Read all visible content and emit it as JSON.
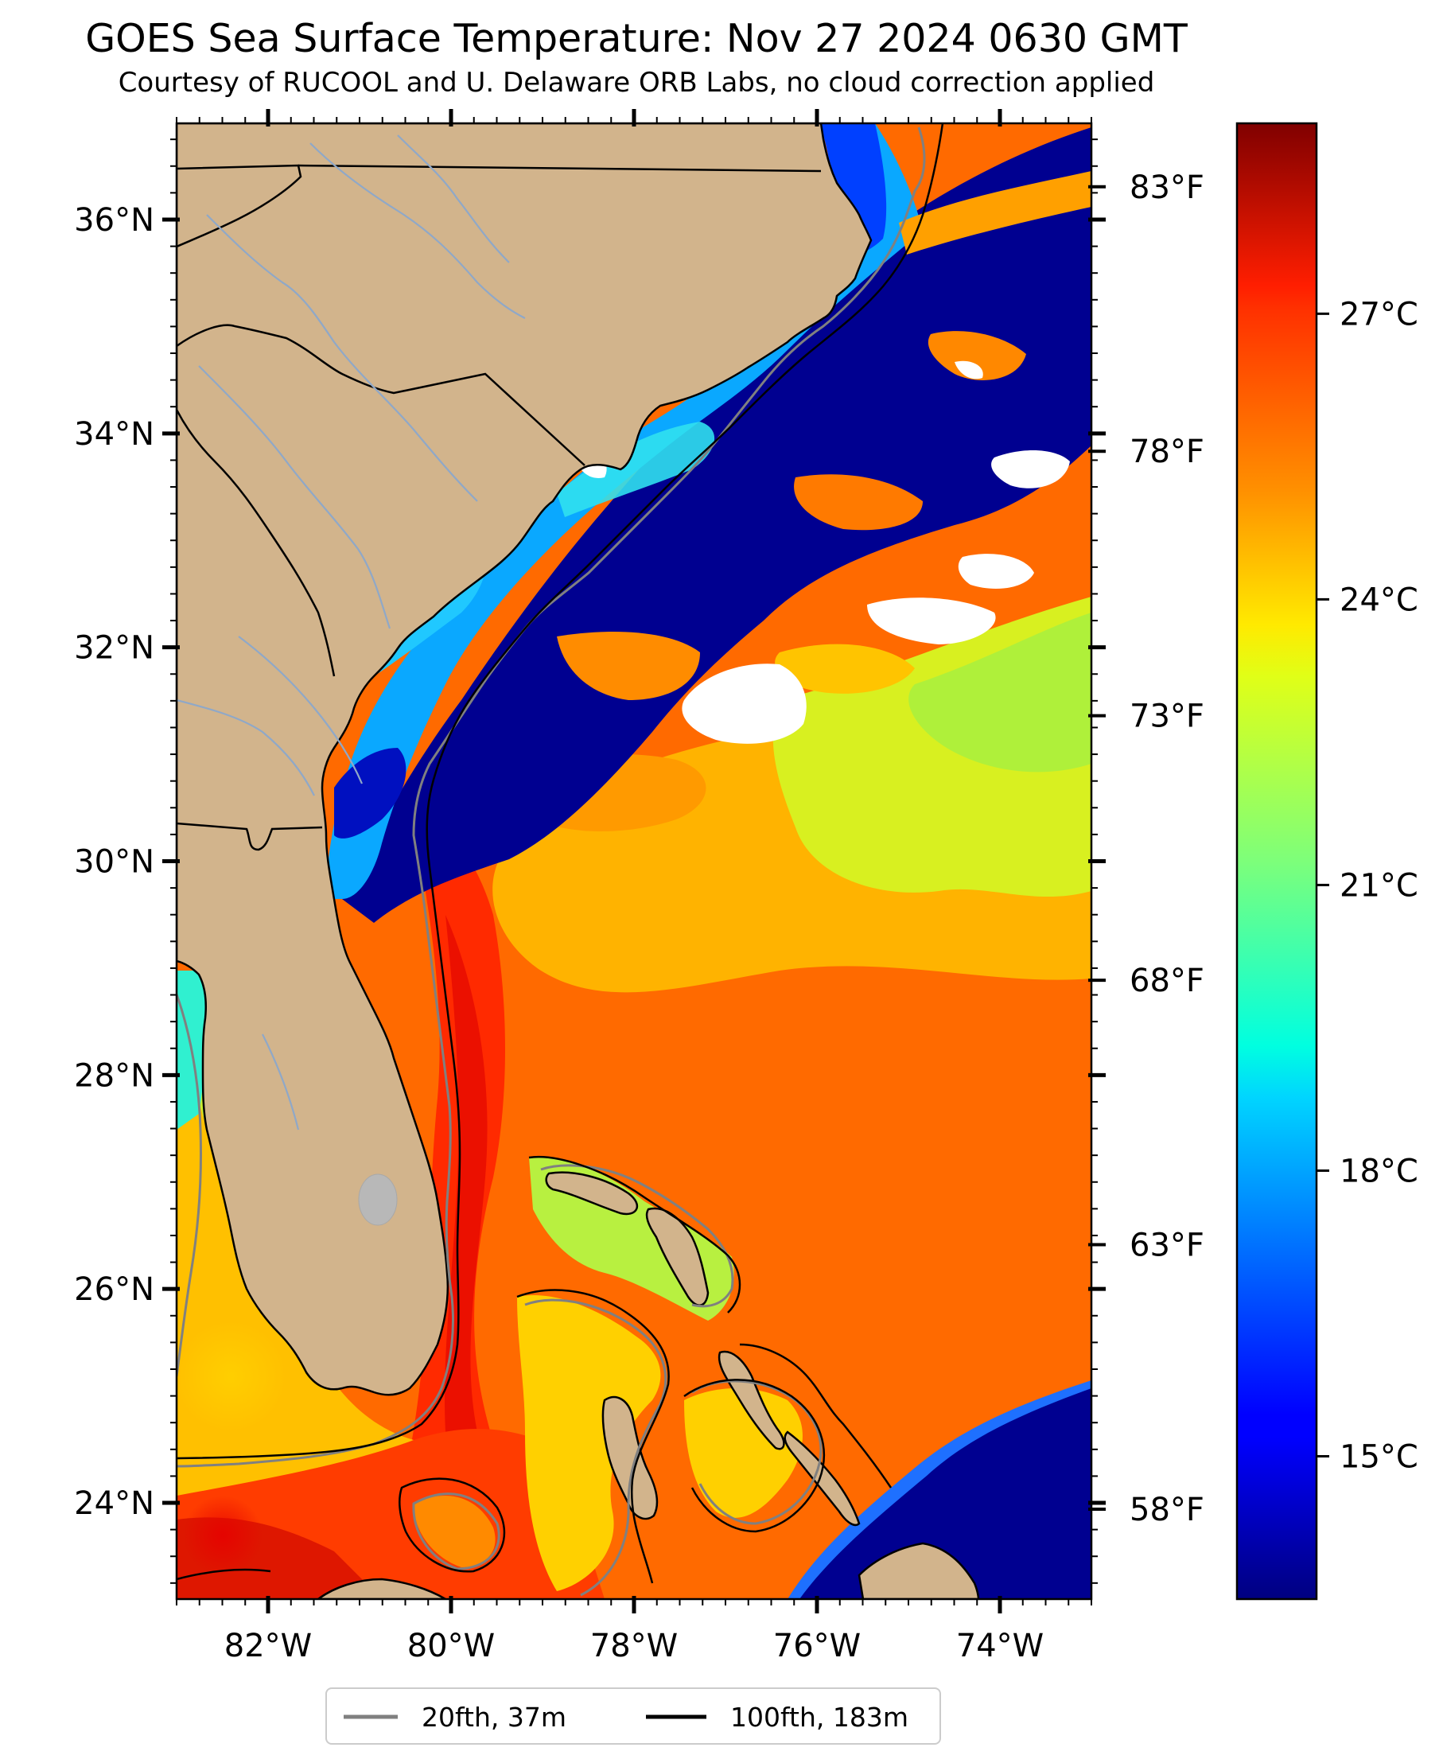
{
  "title": "GOES Sea Surface Temperature: Nov 27 2024 0630 GMT",
  "subtitle": "Courtesy of RUCOOL and U. Delaware ORB Labs, no cloud correction applied",
  "map": {
    "projection": "plate carree",
    "lon_range": [
      -83,
      -73
    ],
    "lat_range": [
      23.1,
      36.9
    ],
    "lat_ticks": [
      {
        "value": 36,
        "label": "36°N"
      },
      {
        "value": 34,
        "label": "34°N"
      },
      {
        "value": 32,
        "label": "32°N"
      },
      {
        "value": 30,
        "label": "30°N"
      },
      {
        "value": 28,
        "label": "28°N"
      },
      {
        "value": 26,
        "label": "26°N"
      },
      {
        "value": 24,
        "label": "24°N"
      }
    ],
    "lon_ticks": [
      {
        "value": -82,
        "label": "82°W"
      },
      {
        "value": -80,
        "label": "80°W"
      },
      {
        "value": -78,
        "label": "78°W"
      },
      {
        "value": -76,
        "label": "76°W"
      },
      {
        "value": -74,
        "label": "74°W"
      }
    ],
    "fahrenheit_ticks": [
      {
        "value": 83,
        "label": "83°F"
      },
      {
        "value": 78,
        "label": "78°F"
      },
      {
        "value": 73,
        "label": "73°F"
      },
      {
        "value": 68,
        "label": "68°F"
      },
      {
        "value": 63,
        "label": "63°F"
      },
      {
        "value": 58,
        "label": "58°F"
      }
    ],
    "colors": {
      "land": "#d2b48c",
      "cloud": "#ffffff",
      "contour_20fth": "#808080",
      "contour_100fth": "#000000",
      "rivers": "#8fa8c8"
    }
  },
  "colorbar": {
    "colormap": "jet",
    "range_c": [
      13.5,
      29
    ],
    "celsius_ticks": [
      {
        "value": 27,
        "label": "27°C"
      },
      {
        "value": 24,
        "label": "24°C"
      },
      {
        "value": 21,
        "label": "21°C"
      },
      {
        "value": 18,
        "label": "18°C"
      },
      {
        "value": 15,
        "label": "15°C"
      }
    ]
  },
  "legend": {
    "items": [
      {
        "label": "20fth, 37m",
        "color": "#808080"
      },
      {
        "label": "100fth, 183m",
        "color": "#000000"
      }
    ]
  }
}
